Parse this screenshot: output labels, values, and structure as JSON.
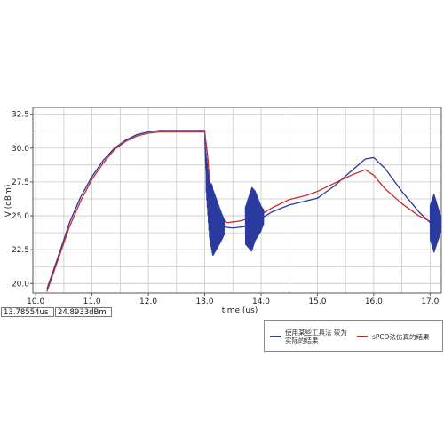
{
  "chart_data": {
    "type": "line",
    "title": "",
    "xlabel": "time (us)",
    "ylabel": "V (dBm)",
    "xlim": [
      9.95,
      17.2
    ],
    "ylim": [
      19.3,
      33.0
    ],
    "x_ticks": [
      10.0,
      11.0,
      12.0,
      13.0,
      14.0,
      15.0,
      16.0,
      17.0
    ],
    "x_tick_labels": [
      "10.0",
      "11.0",
      "12.0",
      "13.0",
      "14.0",
      "15.0",
      "16.0",
      "17.0"
    ],
    "y_ticks": [
      20.0,
      22.5,
      25.0,
      27.5,
      30.0,
      32.5
    ],
    "y_tick_labels": [
      "20.0",
      "22.5",
      "25.0",
      "27.5",
      "30.0",
      "32.5"
    ],
    "grid": true,
    "legend_position": "bottom-right",
    "colors": {
      "series_1": "#2b3a9e",
      "series_2": "#cc2a2a",
      "grid": "#c8c8c8",
      "frame": "#555555"
    },
    "series": [
      {
        "name": "使用某些工具法 较为实际的结果",
        "color": "#2b3a9e",
        "x": [
          10.2,
          10.4,
          10.6,
          10.8,
          11.0,
          11.2,
          11.4,
          11.6,
          11.8,
          12.0,
          12.2,
          12.5,
          12.8,
          13.0,
          13.02,
          13.08,
          13.15,
          13.3,
          13.5,
          13.7,
          13.8,
          13.9,
          14.0,
          14.2,
          14.5,
          14.8,
          15.0,
          15.3,
          15.6,
          15.85,
          16.0,
          16.2,
          16.5,
          16.8,
          17.0,
          17.15
        ],
        "y": [
          19.6,
          22.0,
          24.5,
          26.4,
          27.9,
          29.1,
          30.0,
          30.6,
          31.0,
          31.2,
          31.3,
          31.3,
          31.3,
          31.3,
          28.5,
          25.5,
          24.5,
          24.2,
          24.1,
          24.2,
          24.6,
          25.0,
          24.8,
          25.3,
          25.8,
          26.1,
          26.3,
          27.2,
          28.3,
          29.2,
          29.3,
          28.5,
          26.8,
          25.3,
          24.5,
          24.4
        ]
      },
      {
        "name": "sPCD法仿真的结果",
        "color": "#cc2a2a",
        "x": [
          10.2,
          10.4,
          10.6,
          10.8,
          11.0,
          11.2,
          11.4,
          11.6,
          11.8,
          12.0,
          12.2,
          12.5,
          12.8,
          13.0,
          13.05,
          13.1,
          13.2,
          13.4,
          13.6,
          13.8,
          14.0,
          14.2,
          14.5,
          14.8,
          15.0,
          15.3,
          15.6,
          15.85,
          16.0,
          16.2,
          16.5,
          16.8,
          17.0,
          17.15
        ],
        "y": [
          19.4,
          21.8,
          24.2,
          26.1,
          27.7,
          28.9,
          29.9,
          30.5,
          30.9,
          31.1,
          31.2,
          31.2,
          31.2,
          31.2,
          29.5,
          27.0,
          25.0,
          24.5,
          24.6,
          24.8,
          25.1,
          25.6,
          26.2,
          26.5,
          26.8,
          27.4,
          28.0,
          28.4,
          28.0,
          27.0,
          25.9,
          25.0,
          24.6,
          24.5
        ]
      }
    ],
    "cursor": {
      "x_readout": "13.78554us",
      "y_readout": "24.8933dBm"
    }
  }
}
